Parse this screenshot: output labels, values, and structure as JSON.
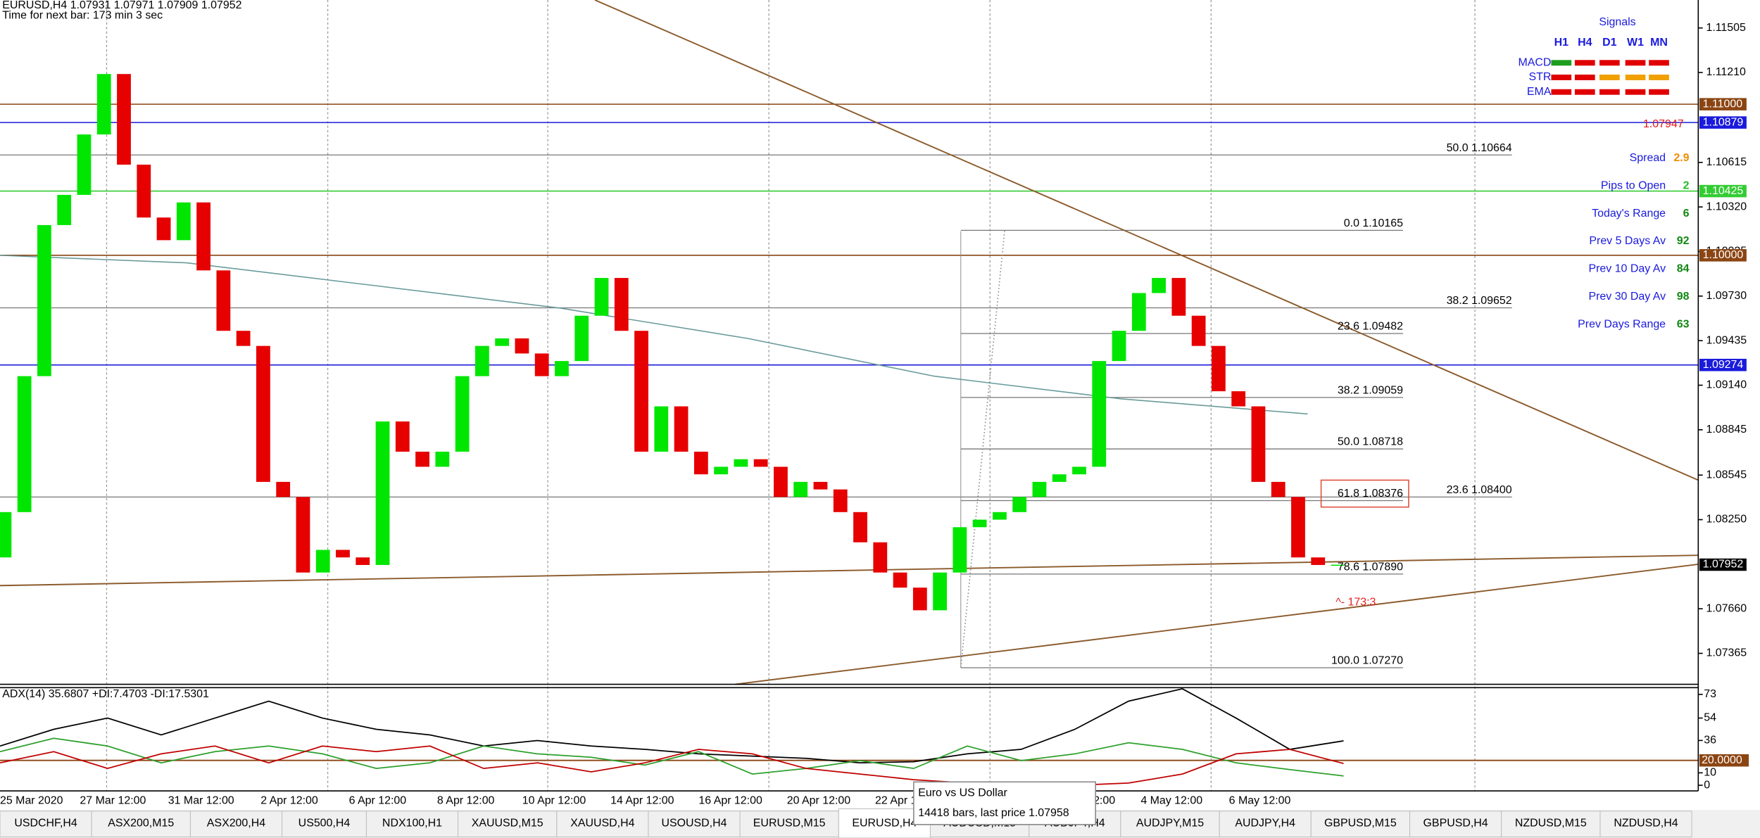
{
  "chart_data": [
    {
      "type": "candlestick",
      "title": "EURUSD,H4  1.07931 1.07971 1.07909 1.07952",
      "subtitle": "Time for next bar: 173 min 3 sec",
      "open": 1.08,
      "close": [
        1.083,
        1.092,
        1.102,
        1.104,
        1.108,
        1.112,
        1.106,
        1.1025,
        1.101,
        1.1035,
        1.099,
        1.095,
        1.094,
        1.085,
        1.084,
        1.079,
        1.0805,
        1.08,
        1.0795,
        1.089,
        1.087,
        1.086,
        1.087,
        1.092,
        1.094,
        1.0945,
        1.0935,
        1.092,
        1.093,
        1.096,
        1.0985,
        1.095,
        1.087,
        1.09,
        1.087,
        1.0855,
        1.086,
        1.0865,
        1.086,
        1.084,
        1.085,
        1.0845,
        1.083,
        1.081,
        1.079,
        1.078,
        1.0765,
        1.079,
        1.082,
        1.0825,
        1.083,
        1.084,
        1.085,
        1.0855,
        1.086,
        1.093,
        1.095,
        1.0975,
        1.0985,
        1.096,
        1.094,
        1.091,
        1.09,
        1.085,
        1.084,
        1.08,
        1.0795,
        1.07952
      ],
      "up_color": "#00e600",
      "down_color": "#e60000",
      "ma": {
        "color": "#6a9a9a",
        "values": [
          1.1,
          1.0995,
          1.098,
          1.0965,
          1.0945,
          1.092,
          1.0905,
          1.0895
        ]
      },
      "ylim": [
        1.0716,
        1.1169
      ],
      "yticks": [
        1.11505,
        {
          "value": 1.1121,
          "label": "1.11210"
        },
        1.10615,
        {
          "value": 1.1032,
          "label": "1.10320"
        },
        1.10025,
        {
          "value": 1.0973,
          "label": "1.09730"
        },
        1.09435,
        {
          "value": 1.0914,
          "label": "1.09140"
        },
        1.08845,
        1.08545,
        {
          "value": 1.0825,
          "label": "1.08250"
        },
        {
          "value": 1.0766,
          "label": "1.07660"
        },
        1.07365
      ],
      "x_labels": [
        "25 Mar 2020",
        "27 Mar 12:00",
        "31 Mar 12:00",
        "2 Apr 12:00",
        "6 Apr 12:00",
        "8 Apr 12:00",
        "10 Apr 12:00",
        "14 Apr 12:00",
        "16 Apr 12:00",
        "20 Apr 12:00",
        "22 Apr 12:00",
        "28 Apr 12:00",
        "30 Apr 12:00",
        "4 May 12:00",
        "6 May 12:00"
      ],
      "price_lines": [
        {
          "value": 1.11,
          "label": "1.11000",
          "color": "#8b4513"
        },
        {
          "value": 1.10879,
          "label": "1.10879",
          "color": "#1a1adc"
        },
        {
          "value": 1.10425,
          "label": "1.10425",
          "color": "#33cc33"
        },
        {
          "value": 1.1,
          "label": "1.10000",
          "color": "#8b4513"
        },
        {
          "value": 1.09274,
          "label": "1.09274",
          "color": "#1a1adc"
        },
        {
          "value": 1.07952,
          "label": "1.07952",
          "color": "#000000"
        }
      ],
      "fib_retracement_1": [
        {
          "price": 1.10165,
          "label": "0.0  1.10165"
        },
        {
          "price": 1.09482,
          "label": "23.6  1.09482"
        },
        {
          "price": 1.09059,
          "label": "38.2  1.09059"
        },
        {
          "price": 1.08718,
          "label": "50.0  1.08718"
        },
        {
          "price": 1.08376,
          "label": "61.8  1.08376"
        },
        {
          "price": 1.0789,
          "label": "78.6  1.07890"
        },
        {
          "price": 1.0727,
          "label": "100.0  1.07270"
        }
      ],
      "fib_retracement_2": [
        {
          "price": 1.10664,
          "label": "50.0  1.10664"
        },
        {
          "price": 1.09652,
          "label": "38.2  1.09652"
        },
        {
          "price": 1.084,
          "label": "23.6  1.08400"
        }
      ],
      "annotation": "^- 173:3"
    },
    {
      "type": "line",
      "title": "ADX(14) 35.6807 +DI:7.4703 -DI:17.5301",
      "series": [
        {
          "name": "ADX",
          "color": "#000000",
          "values": [
            31.5,
            45,
            54,
            40.5,
            54,
            67.6,
            54,
            45,
            40.5,
            31.5,
            36,
            31.5,
            28.8,
            25.2,
            23.4,
            21.6,
            18,
            18.9,
            25.2,
            28.8,
            45,
            67.6,
            77.5,
            54,
            28.8,
            35.68
          ]
        },
        {
          "name": "+DI",
          "color": "#2ca02c",
          "values": [
            27,
            37.8,
            31.5,
            18,
            27,
            31.5,
            25.2,
            13.5,
            18,
            31.5,
            25.2,
            22.5,
            16.2,
            27,
            9,
            13.5,
            19.8,
            13.5,
            31.5,
            19.8,
            25.2,
            34.2,
            28.8,
            18,
            12.6,
            7.47
          ]
        },
        {
          "name": "-DI",
          "color": "#c00000",
          "values": [
            18,
            27,
            13.5,
            25.2,
            31.5,
            18,
            31.5,
            27,
            31.5,
            13.5,
            18,
            10.8,
            18,
            28.8,
            25.2,
            13.5,
            9,
            4.5,
            1.8,
            0,
            0,
            1.8,
            9,
            25.2,
            28.8,
            17.53
          ]
        }
      ],
      "level": {
        "value": 20,
        "label": "20.0000"
      },
      "ylim": [
        -4.5,
        79.3
      ],
      "yticks": [
        73,
        54,
        36,
        10,
        0
      ]
    }
  ],
  "signals": {
    "title": "Signals",
    "columns": [
      "H1",
      "H4",
      "D1",
      "W1",
      "MN"
    ],
    "rows": [
      {
        "label": "MACD",
        "colors": [
          "#1e9e1e",
          "#e00000",
          "#e00000",
          "#e00000",
          "#e00000"
        ]
      },
      {
        "label": "STR",
        "colors": [
          "#e00000",
          "#e00000",
          "#f0a000",
          "#f0a000",
          "#f0a000"
        ]
      },
      {
        "label": "EMA",
        "colors": [
          "#e00000",
          "#e00000",
          "#e00000",
          "#e00000",
          "#e00000"
        ]
      }
    ]
  },
  "bid": "1.07947",
  "info": [
    {
      "label": "Spread",
      "value": 2.9,
      "color": "#f08c00"
    },
    {
      "label": "Pips to Open",
      "value": 2,
      "color": "#22bb22"
    },
    {
      "label": "Today's Range",
      "value": 6,
      "color": "#118811"
    },
    {
      "label": "Prev 5 Days Av",
      "value": 92,
      "color": "#118811"
    },
    {
      "label": "Prev 10 Day Av",
      "value": 84,
      "color": "#118811"
    },
    {
      "label": "Prev 30 Day Av",
      "value": 98,
      "color": "#118811"
    },
    {
      "label": "Prev Days Range",
      "value": 63,
      "color": "#118811"
    }
  ],
  "tooltip": {
    "line1": "Euro vs US Dollar",
    "line2": "14418 bars, last price 1.07958"
  },
  "tabs": [
    "USDCHF,H4",
    "ASX200,M15",
    "ASX200,H4",
    "US500,H4",
    "NDX100,H1",
    "XAUUSD,M15",
    "XAUUSD,H4",
    "USOUSD,H4",
    "EURUSD,M15",
    "EURUSD,H4",
    "AUDUSD,M15",
    "AUDJPY,H4",
    "AUDJPY,M15",
    "AUDJPY,H4",
    "GBPUSD,M15",
    "GBPUSD,H4",
    "NZDUSD,M15",
    "NZDUSD,H4"
  ],
  "active_tab": 9
}
